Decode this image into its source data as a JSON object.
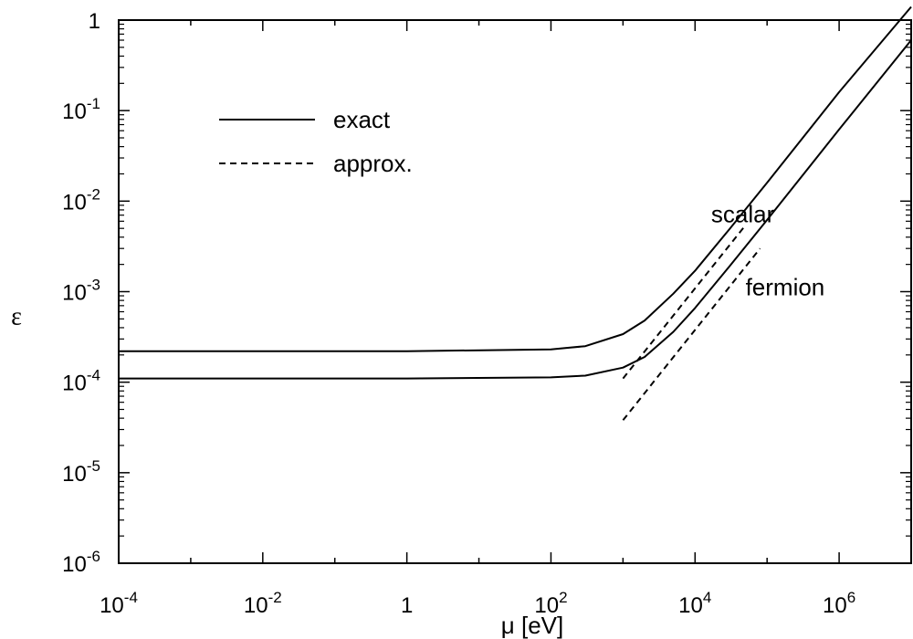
{
  "chart_data": {
    "type": "line",
    "xlabel": "μ [eV]",
    "ylabel": "ε",
    "x_scale": "log",
    "y_scale": "log",
    "xlim": [
      0.0001,
      10000000
    ],
    "ylim": [
      1e-06,
      1
    ],
    "x_ticks": [
      {
        "value": 0.0001,
        "base": "10",
        "exp": "-4"
      },
      {
        "value": 0.01,
        "base": "10",
        "exp": "-2"
      },
      {
        "value": 1,
        "base": "1",
        "exp": ""
      },
      {
        "value": 100,
        "base": "10",
        "exp": "2"
      },
      {
        "value": 10000,
        "base": "10",
        "exp": "4"
      },
      {
        "value": 1000000,
        "base": "10",
        "exp": "6"
      }
    ],
    "y_ticks": [
      {
        "value": 1,
        "base": "1",
        "exp": ""
      },
      {
        "value": 0.1,
        "base": "10",
        "exp": "-1"
      },
      {
        "value": 0.01,
        "base": "10",
        "exp": "-2"
      },
      {
        "value": 0.001,
        "base": "10",
        "exp": "-3"
      },
      {
        "value": 0.0001,
        "base": "10",
        "exp": "-4"
      },
      {
        "value": 1e-05,
        "base": "10",
        "exp": "-5"
      },
      {
        "value": 1e-06,
        "base": "10",
        "exp": "-6"
      }
    ],
    "grid": false,
    "legend": {
      "position": "top-left",
      "entries": [
        {
          "label": "exact",
          "style": "solid"
        },
        {
          "label": "approx.",
          "style": "dashed"
        }
      ]
    },
    "annotations": [
      {
        "text": "scalar",
        "x": 30000,
        "y": 0.007
      },
      {
        "text": "fermion",
        "x": 90000,
        "y": 0.0011
      }
    ],
    "series": [
      {
        "type": "exact",
        "style": "solid",
        "x": [
          0.0001,
          1,
          100,
          300,
          1000,
          2000,
          5000,
          10000,
          30000,
          100000,
          1000000,
          10000000
        ],
        "y": [
          0.00022,
          0.00022,
          0.00023,
          0.00025,
          0.00034,
          0.00048,
          0.00095,
          0.0017,
          0.0049,
          0.016,
          0.16,
          1.4
        ]
      },
      {
        "type": "exact",
        "style": "solid",
        "x": [
          0.0001,
          1,
          100,
          300,
          1000,
          2000,
          5000,
          10000,
          30000,
          100000,
          1000000,
          10000000
        ],
        "y": [
          0.00011,
          0.00011,
          0.000113,
          0.000118,
          0.000145,
          0.00019,
          0.00036,
          0.00066,
          0.0019,
          0.0062,
          0.062,
          0.6
        ]
      },
      {
        "type": "approx",
        "style": "dashed",
        "x": [
          1000,
          50000
        ],
        "y": [
          0.00011,
          0.0054
        ]
      },
      {
        "type": "approx",
        "style": "dashed",
        "x": [
          1000,
          80000
        ],
        "y": [
          3.8e-05,
          0.003
        ]
      }
    ]
  }
}
